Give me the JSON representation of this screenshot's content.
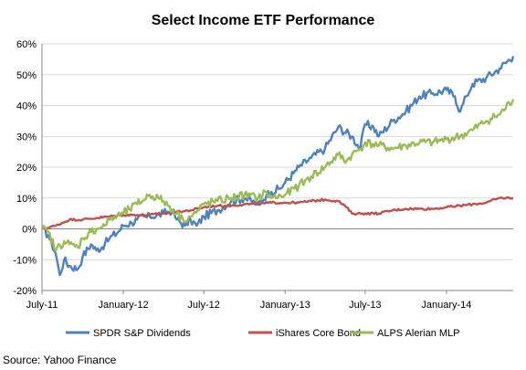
{
  "chart_data": {
    "type": "line",
    "title": "Select Income ETF Performance",
    "xlabel": "",
    "ylabel": "",
    "x_tick_labels": [
      "July-11",
      "January-12",
      "July-12",
      "January-13",
      "July-13",
      "January-14"
    ],
    "y_tick_labels": [
      "-20%",
      "-10%",
      "0%",
      "10%",
      "20%",
      "30%",
      "40%",
      "50%",
      "60%"
    ],
    "ylim": [
      -20,
      60
    ],
    "y_unit": "%",
    "grid": "horizontal",
    "legend_position": "bottom",
    "x_start": "2011-07",
    "x_end": "2014-06",
    "series": [
      {
        "name": "SPDR S&P Dividends",
        "color": "#4F81BD",
        "points": [
          [
            "2011-07",
            0
          ],
          [
            "2011-07-15",
            -2
          ],
          [
            "2011-08",
            -8
          ],
          [
            "2011-08-10",
            -15
          ],
          [
            "2011-08-20",
            -10
          ],
          [
            "2011-09",
            -12
          ],
          [
            "2011-09-20",
            -13
          ],
          [
            "2011-10",
            -9
          ],
          [
            "2011-10-20",
            -5
          ],
          [
            "2011-11",
            -7
          ],
          [
            "2011-11-20",
            -5
          ],
          [
            "2011-12",
            -3
          ],
          [
            "2011-12-20",
            -1
          ],
          [
            "2012-01",
            1
          ],
          [
            "2012-01-20",
            2
          ],
          [
            "2012-02",
            3
          ],
          [
            "2012-03",
            4
          ],
          [
            "2012-04",
            5
          ],
          [
            "2012-04-20",
            6
          ],
          [
            "2012-05",
            3
          ],
          [
            "2012-05-20",
            1
          ],
          [
            "2012-06",
            3
          ],
          [
            "2012-06-15",
            1
          ],
          [
            "2012-07",
            4
          ],
          [
            "2012-08",
            6
          ],
          [
            "2012-09",
            9
          ],
          [
            "2012-10",
            10
          ],
          [
            "2012-11",
            8
          ],
          [
            "2012-11-20",
            11
          ],
          [
            "2012-12",
            12
          ],
          [
            "2012-12-20",
            13
          ],
          [
            "2013-01",
            15
          ],
          [
            "2013-01-20",
            18
          ],
          [
            "2013-02",
            20
          ],
          [
            "2013-03",
            23
          ],
          [
            "2013-04",
            26
          ],
          [
            "2013-05",
            33
          ],
          [
            "2013-06",
            30
          ],
          [
            "2013-06-20",
            26
          ],
          [
            "2013-07",
            34
          ],
          [
            "2013-07-20",
            33
          ],
          [
            "2013-08",
            30
          ],
          [
            "2013-09",
            35
          ],
          [
            "2013-10",
            38
          ],
          [
            "2013-11",
            43
          ],
          [
            "2013-12",
            44
          ],
          [
            "2014-01",
            45
          ],
          [
            "2014-01-20",
            43
          ],
          [
            "2014-02",
            38
          ],
          [
            "2014-02-15",
            43
          ],
          [
            "2014-03",
            47
          ],
          [
            "2014-04",
            49
          ],
          [
            "2014-05",
            52
          ],
          [
            "2014-06",
            56
          ]
        ]
      },
      {
        "name": "iShares Core Bond",
        "color": "#C0504D",
        "points": [
          [
            "2011-07",
            0
          ],
          [
            "2011-08",
            1
          ],
          [
            "2011-09",
            3
          ],
          [
            "2011-10",
            3
          ],
          [
            "2011-11",
            3.5
          ],
          [
            "2011-12",
            4
          ],
          [
            "2012-01",
            4.5
          ],
          [
            "2012-02",
            4.5
          ],
          [
            "2012-03",
            4.5
          ],
          [
            "2012-04",
            5
          ],
          [
            "2012-05",
            5.5
          ],
          [
            "2012-06",
            6
          ],
          [
            "2012-07",
            7
          ],
          [
            "2012-08",
            7.5
          ],
          [
            "2012-09",
            7.5
          ],
          [
            "2012-10",
            8
          ],
          [
            "2012-11",
            8
          ],
          [
            "2012-12",
            8.5
          ],
          [
            "2013-01",
            8.5
          ],
          [
            "2013-02",
            8.5
          ],
          [
            "2013-03",
            9
          ],
          [
            "2013-04",
            9.5
          ],
          [
            "2013-05",
            9
          ],
          [
            "2013-05-20",
            7
          ],
          [
            "2013-06",
            5
          ],
          [
            "2013-07",
            5
          ],
          [
            "2013-08",
            5
          ],
          [
            "2013-09",
            6
          ],
          [
            "2013-10",
            6.5
          ],
          [
            "2013-11",
            6.5
          ],
          [
            "2013-12",
            6.5
          ],
          [
            "2014-01",
            7
          ],
          [
            "2014-02",
            7.5
          ],
          [
            "2014-03",
            8
          ],
          [
            "2014-04",
            8.5
          ],
          [
            "2014-05",
            10
          ],
          [
            "2014-06",
            10
          ]
        ]
      },
      {
        "name": "ALPS Alerian MLP",
        "color": "#9BBB59",
        "points": [
          [
            "2011-07",
            0
          ],
          [
            "2011-07-15",
            -1
          ],
          [
            "2011-08",
            -7
          ],
          [
            "2011-08-20",
            -4
          ],
          [
            "2011-09",
            -5
          ],
          [
            "2011-09-20",
            -6
          ],
          [
            "2011-10",
            -3
          ],
          [
            "2011-10-20",
            -1
          ],
          [
            "2011-11",
            0
          ],
          [
            "2011-11-20",
            1
          ],
          [
            "2011-12",
            3
          ],
          [
            "2012-01",
            5
          ],
          [
            "2012-02",
            8
          ],
          [
            "2012-03",
            11
          ],
          [
            "2012-03-20",
            10
          ],
          [
            "2012-04",
            9
          ],
          [
            "2012-05",
            5
          ],
          [
            "2012-05-15",
            3
          ],
          [
            "2012-06",
            4
          ],
          [
            "2012-06-20",
            6
          ],
          [
            "2012-07",
            8
          ],
          [
            "2012-08",
            9
          ],
          [
            "2012-09",
            10
          ],
          [
            "2012-10",
            11
          ],
          [
            "2012-11",
            10
          ],
          [
            "2012-11-20",
            12
          ],
          [
            "2012-12",
            10
          ],
          [
            "2013-01",
            11
          ],
          [
            "2013-02",
            14
          ],
          [
            "2013-03",
            17
          ],
          [
            "2013-04",
            20
          ],
          [
            "2013-05",
            24
          ],
          [
            "2013-05-20",
            22
          ],
          [
            "2013-06",
            24
          ],
          [
            "2013-06-20",
            26
          ],
          [
            "2013-07",
            28
          ],
          [
            "2013-08",
            27
          ],
          [
            "2013-09",
            26
          ],
          [
            "2013-10",
            27
          ],
          [
            "2013-11",
            28
          ],
          [
            "2013-12",
            28
          ],
          [
            "2014-01",
            29
          ],
          [
            "2014-02",
            30
          ],
          [
            "2014-03",
            32
          ],
          [
            "2014-04",
            35
          ],
          [
            "2014-05",
            37
          ],
          [
            "2014-06",
            42
          ]
        ]
      }
    ]
  },
  "source": "Source: Yahoo Finance"
}
